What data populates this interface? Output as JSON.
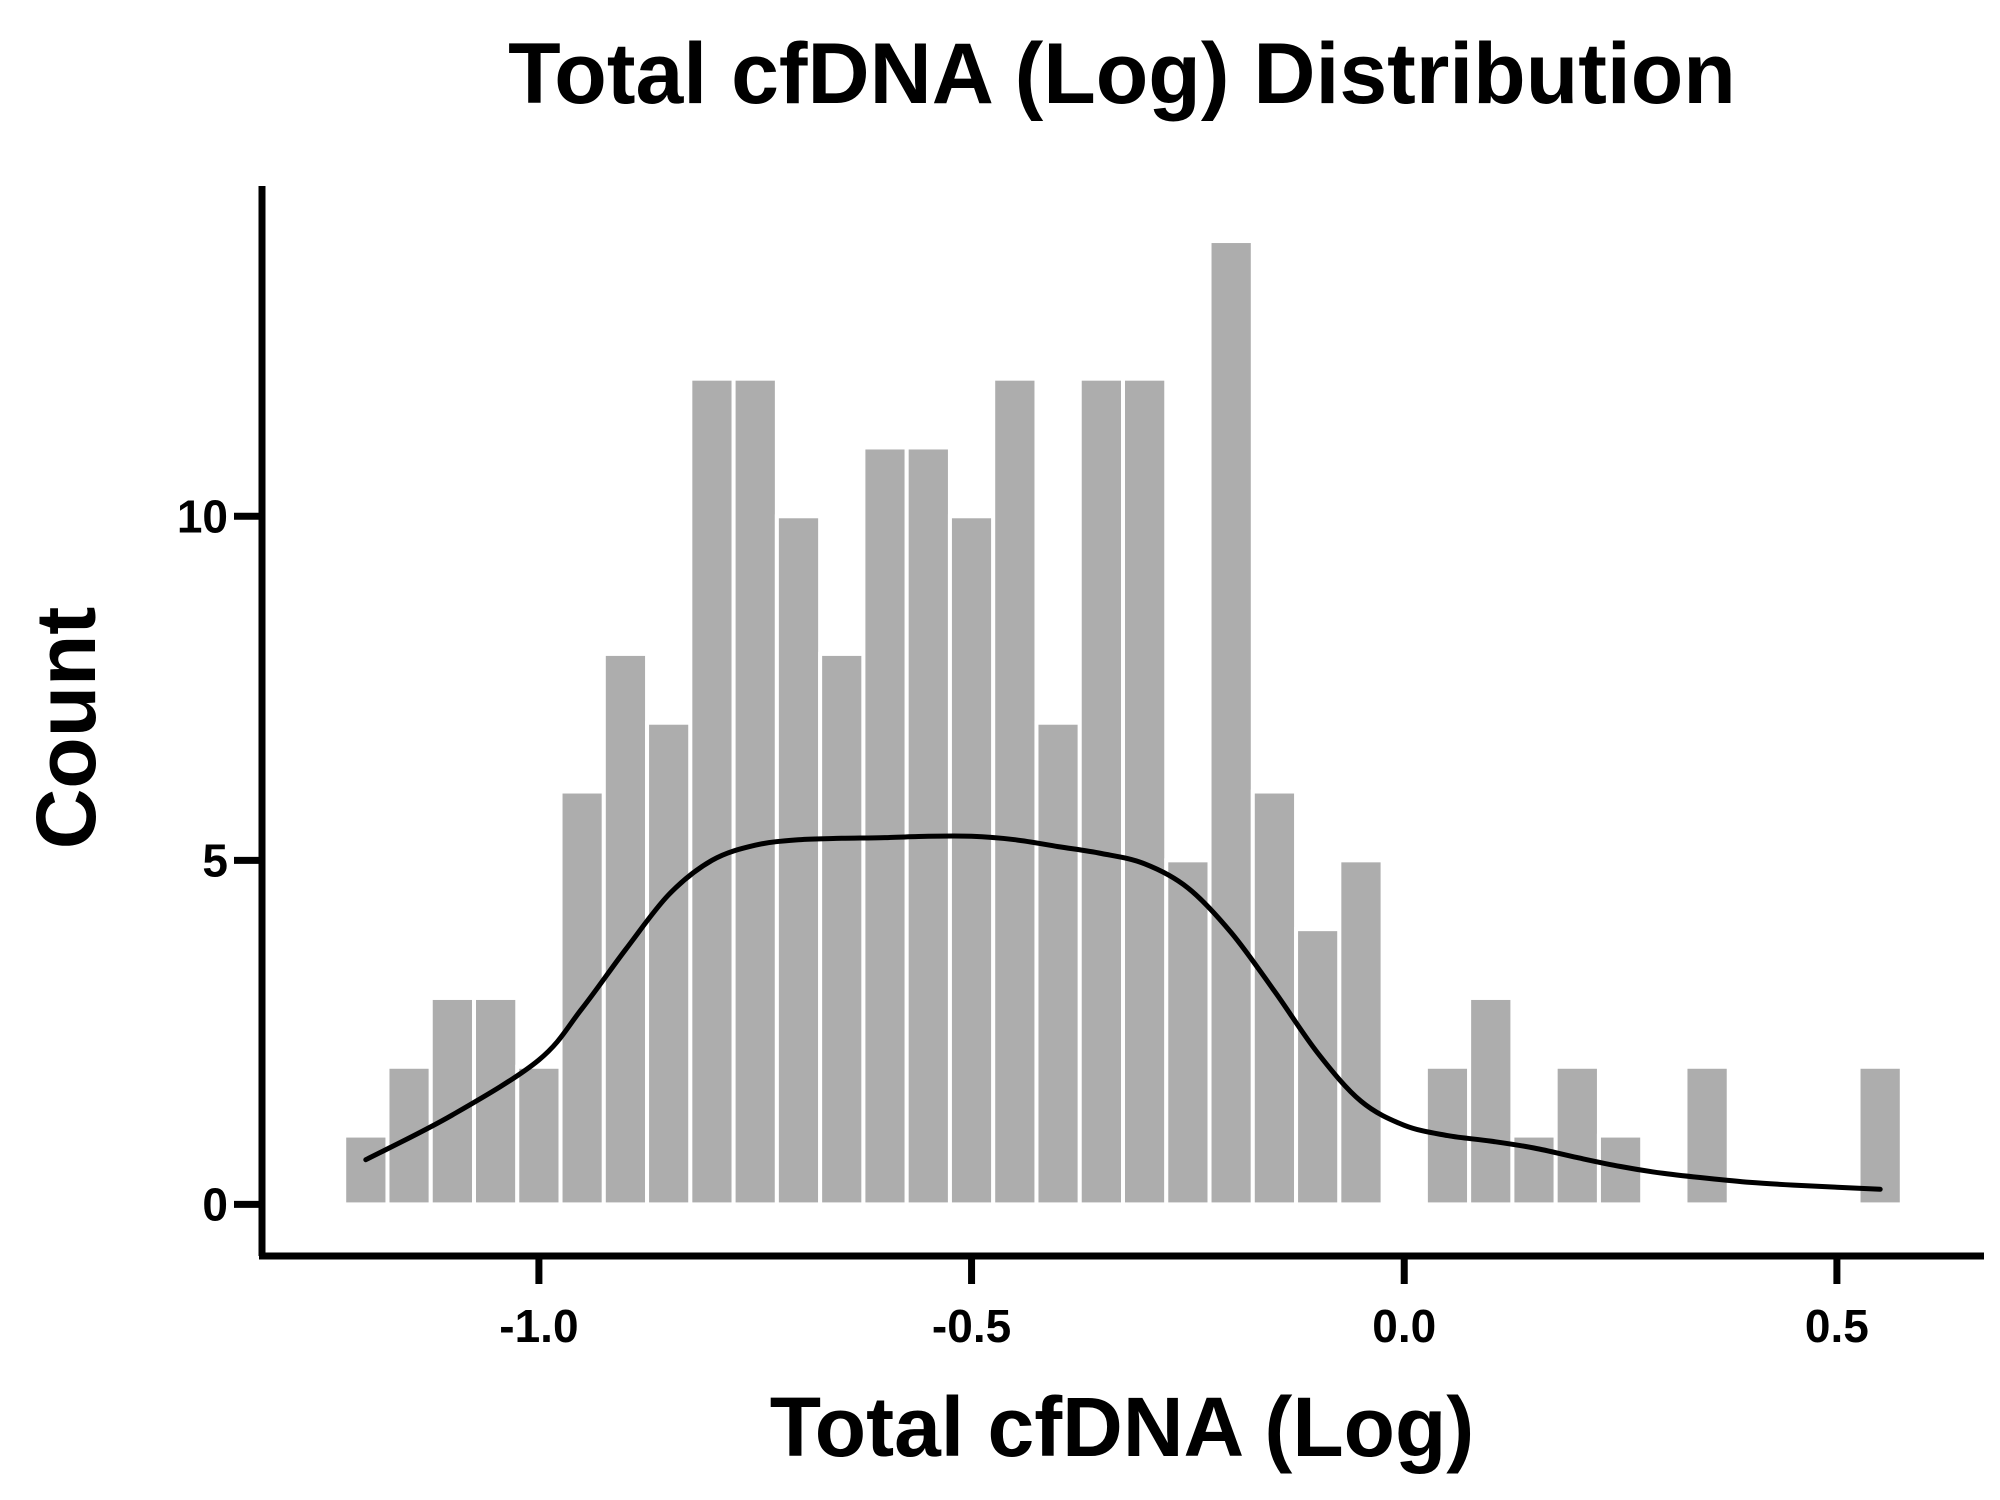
{
  "chart_data": {
    "type": "bar",
    "title": "Total cfDNA (Log) Distribution",
    "xlabel": "Total cfDNA (Log)",
    "ylabel": "Count",
    "xlim": [
      -1.32,
      0.67
    ],
    "ylim": [
      -0.75,
      14.8
    ],
    "xticks": [
      -1.0,
      -0.5,
      0.0,
      0.5
    ],
    "xtick_labels": [
      "-1.0",
      "-0.5",
      "0.0",
      "0.5"
    ],
    "yticks": [
      0,
      5,
      10
    ],
    "ytick_labels": [
      "0",
      "5",
      "10"
    ],
    "bin_width": 0.05,
    "bins": [
      {
        "start": -1.225,
        "count": 1
      },
      {
        "start": -1.175,
        "count": 2
      },
      {
        "start": -1.125,
        "count": 3
      },
      {
        "start": -1.075,
        "count": 3
      },
      {
        "start": -1.025,
        "count": 2
      },
      {
        "start": -0.975,
        "count": 6
      },
      {
        "start": -0.925,
        "count": 8
      },
      {
        "start": -0.875,
        "count": 7
      },
      {
        "start": -0.825,
        "count": 12
      },
      {
        "start": -0.775,
        "count": 12
      },
      {
        "start": -0.725,
        "count": 10
      },
      {
        "start": -0.675,
        "count": 8
      },
      {
        "start": -0.625,
        "count": 11
      },
      {
        "start": -0.575,
        "count": 11
      },
      {
        "start": -0.525,
        "count": 10
      },
      {
        "start": -0.475,
        "count": 12
      },
      {
        "start": -0.425,
        "count": 7
      },
      {
        "start": -0.375,
        "count": 12
      },
      {
        "start": -0.325,
        "count": 12
      },
      {
        "start": -0.275,
        "count": 5
      },
      {
        "start": -0.225,
        "count": 14
      },
      {
        "start": -0.175,
        "count": 6
      },
      {
        "start": -0.125,
        "count": 4
      },
      {
        "start": -0.075,
        "count": 5
      },
      {
        "start": -0.025,
        "count": 0
      },
      {
        "start": 0.025,
        "count": 2
      },
      {
        "start": 0.075,
        "count": 3
      },
      {
        "start": 0.125,
        "count": 1
      },
      {
        "start": 0.175,
        "count": 2
      },
      {
        "start": 0.225,
        "count": 1
      },
      {
        "start": 0.275,
        "count": 0
      },
      {
        "start": 0.325,
        "count": 2
      },
      {
        "start": 0.375,
        "count": 0
      },
      {
        "start": 0.425,
        "count": 0
      },
      {
        "start": 0.475,
        "count": 0
      },
      {
        "start": 0.525,
        "count": 2
      }
    ],
    "kde": {
      "name": "density curve",
      "x": [
        -1.2,
        -1.1,
        -1.0,
        -0.95,
        -0.9,
        -0.85,
        -0.8,
        -0.75,
        -0.7,
        -0.65,
        -0.6,
        -0.55,
        -0.5,
        -0.45,
        -0.4,
        -0.35,
        -0.3,
        -0.25,
        -0.2,
        -0.15,
        -0.1,
        -0.05,
        0.0,
        0.05,
        0.1,
        0.15,
        0.2,
        0.25,
        0.3,
        0.35,
        0.4,
        0.45,
        0.5,
        0.55
      ],
      "y": [
        0.65,
        1.3,
        2.1,
        2.85,
        3.7,
        4.5,
        5.0,
        5.22,
        5.3,
        5.32,
        5.33,
        5.35,
        5.35,
        5.3,
        5.2,
        5.1,
        4.95,
        4.6,
        3.95,
        3.1,
        2.2,
        1.5,
        1.15,
        1.0,
        0.92,
        0.82,
        0.68,
        0.55,
        0.45,
        0.38,
        0.32,
        0.28,
        0.25,
        0.22
      ]
    }
  }
}
